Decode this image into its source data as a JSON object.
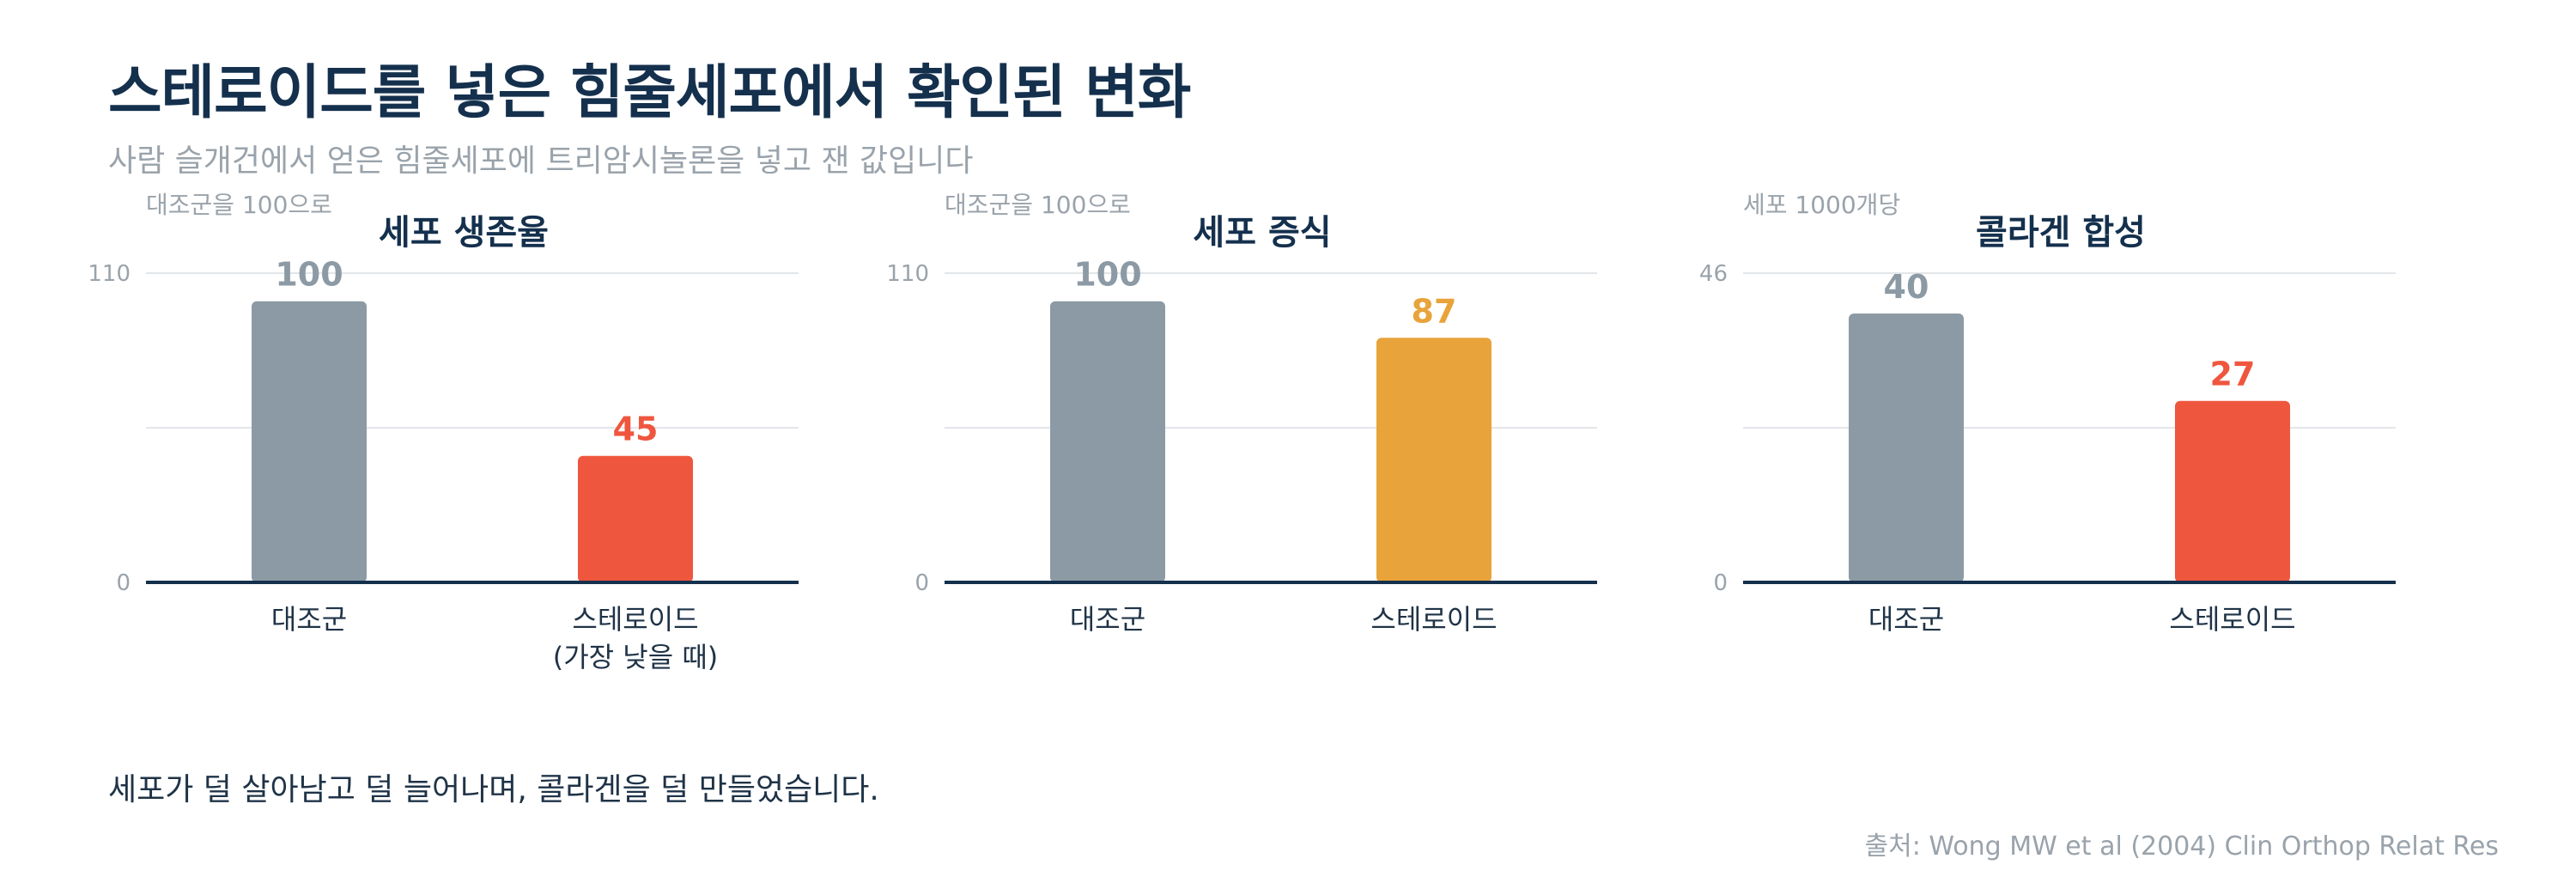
{
  "header": {
    "title": "스테로이드를 넣은 힘줄세포에서 확인된 변화",
    "subtitle": "사람 슬개건에서 얻은 힘줄세포에 트리암시놀론을 넣고 잰 값입니다"
  },
  "colors": {
    "control": "#8c9aa5",
    "decrease_strong": "#ef563e",
    "decrease_mild": "#e8a33a",
    "axis": "#14304d",
    "grid": "#e3e6e9",
    "panel_title": "#14304d",
    "muted": "#9aa3ab"
  },
  "chart_data": [
    {
      "type": "bar",
      "title": "세포 생존율",
      "unit_label": "대조군을 100으로",
      "categories": [
        "대조군",
        "스테로이드\n(가장 낮을 때)"
      ],
      "values": [
        100,
        45
      ],
      "value_labels": [
        "100",
        "45"
      ],
      "bar_colors": [
        "#8c9aa5",
        "#ef563e"
      ],
      "ylim": [
        0,
        110
      ],
      "y_ticks": [
        0,
        110
      ],
      "gridlines": [
        55,
        110
      ],
      "grid": true
    },
    {
      "type": "bar",
      "title": "세포 증식",
      "unit_label": "대조군을 100으로",
      "categories": [
        "대조군",
        "스테로이드"
      ],
      "values": [
        100,
        87
      ],
      "value_labels": [
        "100",
        "87"
      ],
      "bar_colors": [
        "#8c9aa5",
        "#e8a33a"
      ],
      "ylim": [
        0,
        110
      ],
      "y_ticks": [
        0,
        110
      ],
      "gridlines": [
        55,
        110
      ],
      "grid": true
    },
    {
      "type": "bar",
      "title": "콜라겐 합성",
      "unit_label": "세포 1000개당",
      "categories": [
        "대조군",
        "스테로이드"
      ],
      "values": [
        40,
        27
      ],
      "value_labels": [
        "40",
        "27"
      ],
      "bar_colors": [
        "#8c9aa5",
        "#ef563e"
      ],
      "ylim": [
        0,
        46
      ],
      "y_ticks": [
        0,
        46
      ],
      "gridlines": [
        23,
        46
      ],
      "grid": true
    }
  ],
  "footer": {
    "note": "세포가 덜 살아남고 덜 늘어나며, 콜라겐을 덜 만들었습니다.",
    "source": "출처: Wong MW et al (2004) Clin Orthop Relat Res"
  }
}
